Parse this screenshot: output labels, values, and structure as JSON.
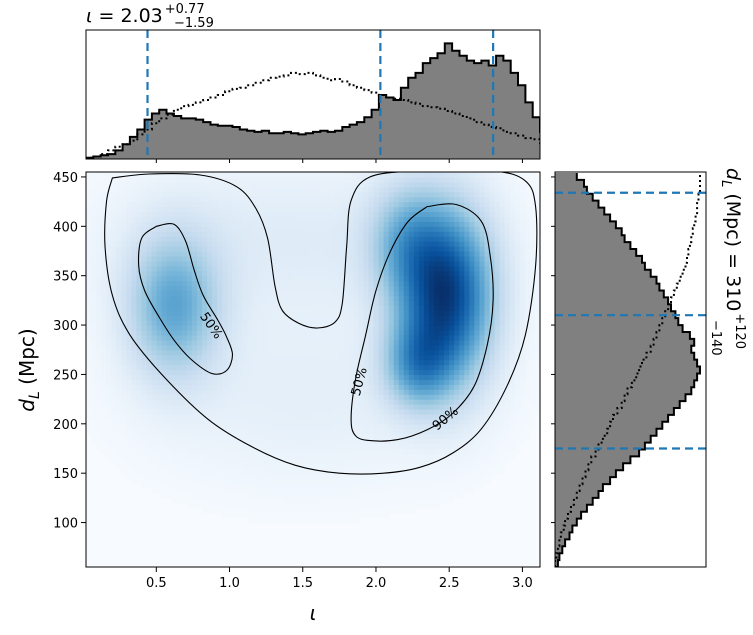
{
  "chart_data": {
    "type": "corner",
    "x": {
      "label": "ι",
      "lim": [
        0.02,
        3.12
      ],
      "ticks": [
        0.5,
        1.0,
        1.5,
        2.0,
        2.5,
        3.0
      ],
      "tick_labels": [
        "0.5",
        "1.0",
        "1.5",
        "2.0",
        "2.5",
        "3.0"
      ],
      "summary": {
        "prefix": "ι = ",
        "median": "2.03",
        "plus": "+0.77",
        "minus": "−1.59"
      },
      "quantiles": [
        0.44,
        2.03,
        2.8
      ]
    },
    "y": {
      "label_main": "d",
      "label_sub": "L",
      "label_unit": " (Mpc)",
      "lim": [
        55,
        455
      ],
      "ticks": [
        100,
        150,
        200,
        250,
        300,
        350,
        400,
        450
      ],
      "tick_labels": [
        "100",
        "150",
        "200",
        "250",
        "300",
        "350",
        "400",
        "450"
      ],
      "summary": {
        "prefix_main": "d",
        "prefix_sub": "L",
        "prefix_rest": " (Mpc) = ",
        "median": "310",
        "plus": "+120",
        "minus": "−140"
      },
      "quantiles": [
        175,
        310,
        434
      ]
    },
    "density_modes": [
      {
        "x": 2.48,
        "y": 330,
        "sx": 0.22,
        "sy": 60,
        "w": 1.0
      },
      {
        "x": 2.28,
        "y": 260,
        "sx": 0.16,
        "sy": 30,
        "w": 0.45
      },
      {
        "x": 2.2,
        "y": 385,
        "sx": 0.18,
        "sy": 40,
        "w": 0.35
      },
      {
        "x": 0.62,
        "y": 320,
        "sx": 0.22,
        "sy": 50,
        "w": 0.52
      },
      {
        "x": 1.5,
        "y": 230,
        "sx": 0.75,
        "sy": 65,
        "w": 0.08
      },
      {
        "x": 1.4,
        "y": 390,
        "sx": 0.85,
        "sy": 55,
        "w": 0.1
      }
    ],
    "contours": [
      {
        "level_label": "90%",
        "label_at": [
          2.47,
          206
        ],
        "label_angle": -40,
        "points": [
          [
            0.2,
            449
          ],
          [
            0.45,
            453
          ],
          [
            0.8,
            452
          ],
          [
            1.05,
            440
          ],
          [
            1.18,
            418
          ],
          [
            1.26,
            388
          ],
          [
            1.31,
            340
          ],
          [
            1.36,
            315
          ],
          [
            1.47,
            302
          ],
          [
            1.6,
            297
          ],
          [
            1.72,
            303
          ],
          [
            1.77,
            322
          ],
          [
            1.8,
            380
          ],
          [
            1.83,
            426
          ],
          [
            1.96,
            450
          ],
          [
            2.3,
            456
          ],
          [
            2.8,
            456
          ],
          [
            3.02,
            446
          ],
          [
            3.09,
            420
          ],
          [
            3.09,
            360
          ],
          [
            3.02,
            290
          ],
          [
            2.9,
            240
          ],
          [
            2.72,
            195
          ],
          [
            2.52,
            170
          ],
          [
            2.3,
            156
          ],
          [
            2.05,
            150
          ],
          [
            1.75,
            150
          ],
          [
            1.45,
            158
          ],
          [
            1.15,
            177
          ],
          [
            0.85,
            205
          ],
          [
            0.55,
            248
          ],
          [
            0.32,
            290
          ],
          [
            0.2,
            330
          ],
          [
            0.15,
            380
          ],
          [
            0.16,
            425
          ],
          [
            0.2,
            449
          ]
        ]
      },
      {
        "level_label": "50%",
        "label_at": [
          0.88,
          300
        ],
        "label_angle": 55,
        "points": [
          [
            0.5,
            400
          ],
          [
            0.4,
            388
          ],
          [
            0.38,
            360
          ],
          [
            0.42,
            335
          ],
          [
            0.52,
            308
          ],
          [
            0.62,
            285
          ],
          [
            0.74,
            265
          ],
          [
            0.88,
            251
          ],
          [
            0.98,
            254
          ],
          [
            1.02,
            270
          ],
          [
            0.98,
            288
          ],
          [
            0.92,
            305
          ],
          [
            0.82,
            330
          ],
          [
            0.76,
            355
          ],
          [
            0.7,
            385
          ],
          [
            0.62,
            402
          ],
          [
            0.5,
            400
          ]
        ]
      },
      {
        "level_label": "50%",
        "label_at": [
          1.88,
          243
        ],
        "label_angle": -75,
        "points": [
          [
            2.35,
            420
          ],
          [
            2.55,
            422
          ],
          [
            2.72,
            405
          ],
          [
            2.78,
            370
          ],
          [
            2.8,
            325
          ],
          [
            2.76,
            280
          ],
          [
            2.67,
            238
          ],
          [
            2.52,
            210
          ],
          [
            2.35,
            194
          ],
          [
            2.15,
            184
          ],
          [
            1.96,
            183
          ],
          [
            1.86,
            188
          ],
          [
            1.83,
            205
          ],
          [
            1.86,
            245
          ],
          [
            1.93,
            290
          ],
          [
            2.0,
            335
          ],
          [
            2.1,
            375
          ],
          [
            2.22,
            405
          ],
          [
            2.35,
            420
          ]
        ]
      }
    ],
    "top_hist": {
      "bin_width": 0.05,
      "filled": [
        0.01,
        0.02,
        0.03,
        0.04,
        0.07,
        0.12,
        0.18,
        0.24,
        0.32,
        0.37,
        0.4,
        0.37,
        0.35,
        0.33,
        0.33,
        0.32,
        0.3,
        0.28,
        0.27,
        0.27,
        0.26,
        0.24,
        0.23,
        0.22,
        0.23,
        0.21,
        0.21,
        0.22,
        0.21,
        0.2,
        0.21,
        0.22,
        0.23,
        0.22,
        0.23,
        0.26,
        0.28,
        0.3,
        0.34,
        0.4,
        0.52,
        0.5,
        0.48,
        0.58,
        0.66,
        0.7,
        0.78,
        0.82,
        0.86,
        0.94,
        0.88,
        0.84,
        0.8,
        0.78,
        0.8,
        0.76,
        0.84,
        0.8,
        0.7,
        0.6,
        0.46,
        0.34,
        0.22,
        0.14,
        0.1,
        0.08,
        0.04
      ],
      "dotted": [
        0.01,
        0.02,
        0.04,
        0.07,
        0.1,
        0.12,
        0.15,
        0.2,
        0.24,
        0.29,
        0.33,
        0.36,
        0.4,
        0.43,
        0.44,
        0.46,
        0.48,
        0.5,
        0.52,
        0.55,
        0.57,
        0.58,
        0.6,
        0.62,
        0.64,
        0.66,
        0.67,
        0.68,
        0.7,
        0.69,
        0.7,
        0.68,
        0.66,
        0.64,
        0.65,
        0.63,
        0.6,
        0.58,
        0.56,
        0.54,
        0.52,
        0.5,
        0.49,
        0.48,
        0.46,
        0.45,
        0.43,
        0.42,
        0.41,
        0.39,
        0.37,
        0.35,
        0.33,
        0.3,
        0.28,
        0.26,
        0.25,
        0.22,
        0.21,
        0.19,
        0.17,
        0.16,
        0.13,
        0.11,
        0.08,
        0.06,
        0.03
      ]
    },
    "right_hist": {
      "bin_width": 7,
      "filled": [
        0.02,
        0.03,
        0.05,
        0.07,
        0.1,
        0.12,
        0.15,
        0.18,
        0.22,
        0.26,
        0.3,
        0.33,
        0.38,
        0.42,
        0.47,
        0.52,
        0.58,
        0.62,
        0.66,
        0.7,
        0.74,
        0.78,
        0.82,
        0.86,
        0.9,
        0.94,
        0.96,
        0.98,
        1.0,
        0.98,
        0.96,
        0.94,
        0.96,
        0.93,
        0.88,
        0.85,
        0.83,
        0.8,
        0.78,
        0.75,
        0.72,
        0.7,
        0.66,
        0.62,
        0.6,
        0.56,
        0.52,
        0.48,
        0.46,
        0.42,
        0.38,
        0.34,
        0.3,
        0.26,
        0.22,
        0.2,
        0.15
      ],
      "dotted": [
        0.0,
        0.01,
        0.02,
        0.03,
        0.04,
        0.06,
        0.07,
        0.09,
        0.11,
        0.13,
        0.15,
        0.17,
        0.19,
        0.21,
        0.23,
        0.25,
        0.28,
        0.3,
        0.33,
        0.36,
        0.38,
        0.4,
        0.43,
        0.46,
        0.48,
        0.5,
        0.53,
        0.56,
        0.58,
        0.6,
        0.63,
        0.66,
        0.68,
        0.7,
        0.72,
        0.74,
        0.76,
        0.78,
        0.8,
        0.82,
        0.84,
        0.86,
        0.88,
        0.9,
        0.91,
        0.92,
        0.93,
        0.94,
        0.95,
        0.96,
        0.97,
        0.98,
        0.98,
        0.99,
        1.0,
        1.0,
        1.0
      ]
    },
    "colors": {
      "cmap_low": "#f7fbff",
      "cmap_high": "#08306b",
      "hist_fill": "#808080",
      "quantile_line": "#1f77b4",
      "contour": "#000000"
    }
  }
}
